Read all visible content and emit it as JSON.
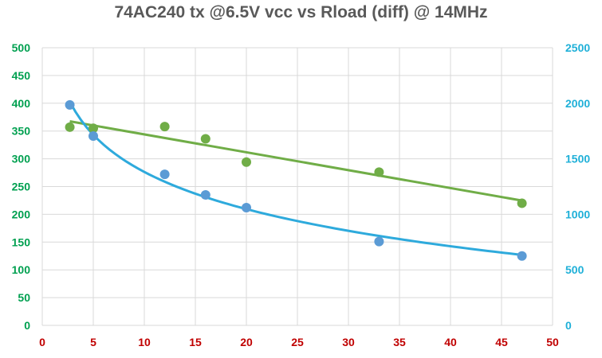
{
  "chart_data": {
    "type": "scatter",
    "title": "74AC240 tx @6.5V vcc vs Rload (diff) @ 14MHz",
    "xlabel": "",
    "ylabel_left": "",
    "ylabel_right": "",
    "xlim": [
      0,
      50
    ],
    "ylim_left": [
      0,
      500
    ],
    "ylim_right": [
      0,
      2500
    ],
    "x_ticks": [
      0,
      5,
      10,
      15,
      20,
      25,
      30,
      35,
      40,
      45,
      50
    ],
    "y_ticks_left": [
      0,
      50,
      100,
      150,
      200,
      250,
      300,
      350,
      400,
      450,
      500
    ],
    "y_ticks_right": [
      0,
      500,
      1000,
      1500,
      2000,
      2500
    ],
    "grid": true,
    "colors": {
      "green": "#70ad47",
      "blue": "#2eaadc",
      "blue_marker": "#5b9bd5",
      "x_tick": "#c00000",
      "left_tick": "#00a050",
      "right_tick": "#1fb0d8",
      "grid": "#d9d9d9"
    },
    "series": [
      {
        "name": "green",
        "axis": "left",
        "color": "#70ad47",
        "trendline": "linear",
        "points": [
          {
            "x": 2.7,
            "y": 357
          },
          {
            "x": 5,
            "y": 355
          },
          {
            "x": 12,
            "y": 358
          },
          {
            "x": 16,
            "y": 336
          },
          {
            "x": 20,
            "y": 294
          },
          {
            "x": 33,
            "y": 276
          },
          {
            "x": 47,
            "y": 220
          }
        ]
      },
      {
        "name": "blue",
        "axis": "left",
        "color": "#5b9bd5",
        "trendline": "logarithmic",
        "points": [
          {
            "x": 2.7,
            "y": 397
          },
          {
            "x": 5,
            "y": 341
          },
          {
            "x": 12,
            "y": 272
          },
          {
            "x": 16,
            "y": 235
          },
          {
            "x": 20,
            "y": 212
          },
          {
            "x": 33,
            "y": 151
          },
          {
            "x": 47,
            "y": 125
          }
        ]
      }
    ]
  }
}
